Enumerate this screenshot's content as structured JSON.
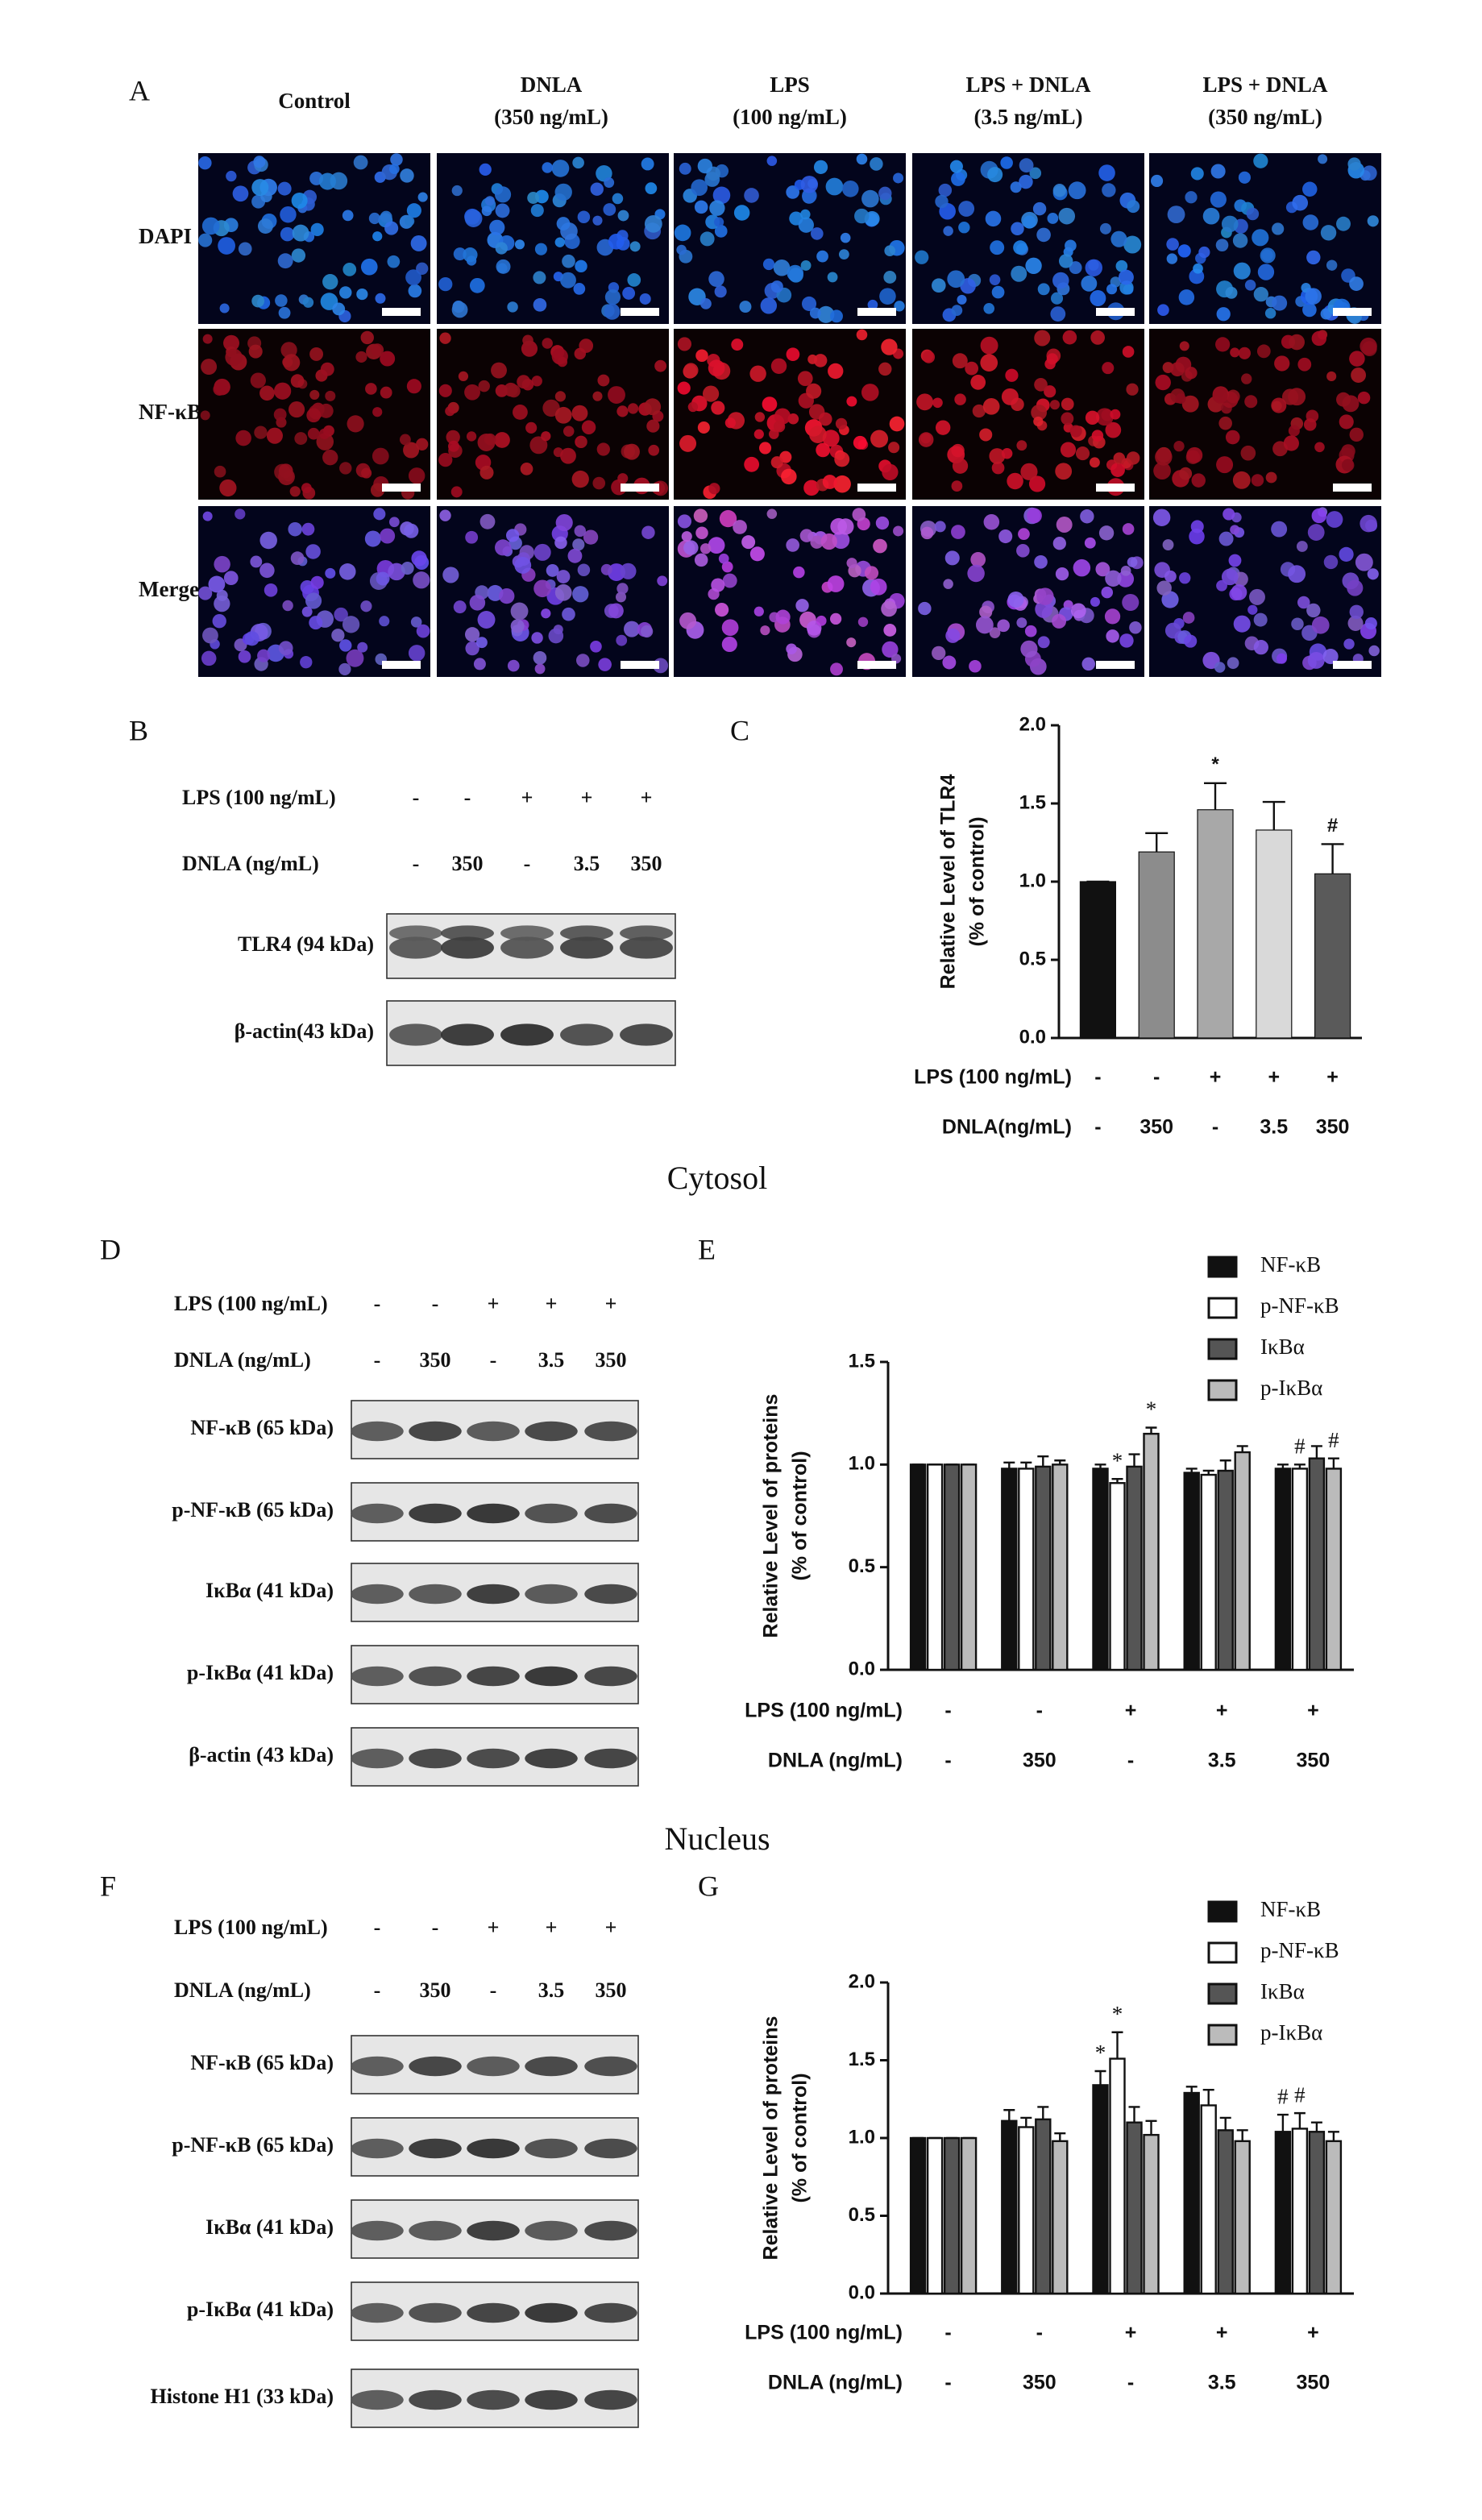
{
  "panel_a": {
    "label": "A",
    "columns": [
      {
        "name": "Control"
      },
      {
        "name": "DNLA",
        "dose": "(350 ng/mL)"
      },
      {
        "name": "LPS",
        "dose": "(100 ng/mL)"
      },
      {
        "name": "LPS + DNLA",
        "dose": "(3.5 ng/mL)"
      },
      {
        "name": "LPS + DNLA",
        "dose": "(350 ng/mL)"
      }
    ],
    "rows": [
      "DAPI",
      "NF-κB",
      "Merge"
    ]
  },
  "panel_b": {
    "label": "B",
    "conditions": [
      {
        "label": "LPS (100 ng/mL)",
        "values": [
          "-",
          "-",
          "+",
          "+",
          "+"
        ]
      },
      {
        "label": "DNLA (ng/mL)",
        "values": [
          "-",
          "350",
          "-",
          "3.5",
          "350"
        ]
      }
    ],
    "blots": [
      "TLR4 (94 kDa)",
      "β-actin(43 kDa)"
    ]
  },
  "panel_d": {
    "label": "D",
    "conditions": [
      {
        "label": "LPS (100 ng/mL)",
        "values": [
          "-",
          "-",
          "+",
          "+",
          "+"
        ]
      },
      {
        "label": "DNLA (ng/mL)",
        "values": [
          "-",
          "350",
          "-",
          "3.5",
          "350"
        ]
      }
    ],
    "blots": [
      "NF-κB (65 kDa)",
      "p-NF-κB (65 kDa)",
      "IκBα (41 kDa)",
      "p-IκBα (41 kDa)",
      "β-actin (43 kDa)"
    ]
  },
  "panel_f": {
    "label": "F",
    "conditions": [
      {
        "label": "LPS (100 ng/mL)",
        "values": [
          "-",
          "-",
          "+",
          "+",
          "+"
        ]
      },
      {
        "label": "DNLA (ng/mL)",
        "values": [
          "-",
          "350",
          "-",
          "3.5",
          "350"
        ]
      }
    ],
    "blots": [
      "NF-κB (65 kDa)",
      "p-NF-κB (65 kDa)",
      "IκBα (41 kDa)",
      "p-IκBα (41 kDa)",
      "Histone H1 (33 kDa)"
    ]
  },
  "section_labels": [
    "Cytosol",
    "Nucleus"
  ],
  "chart_data": [
    {
      "type": "bar",
      "label": "C",
      "y_label": [
        "Relative Level of TLR4",
        "(% of control)"
      ],
      "values": [
        1.0,
        1.19,
        1.46,
        1.33,
        1.05
      ],
      "errors": [
        0,
        0.12,
        0.17,
        0.18,
        0.19
      ],
      "colors": [
        "#111111",
        "#8c8c8c",
        "#a8a8a8",
        "#d9d9d9",
        "#5a5a5a"
      ],
      "ylim": [
        0,
        2
      ],
      "yticks": [
        {
          "value": 0,
          "label": "0.0"
        },
        {
          "value": 0.5,
          "label": "0.5"
        },
        {
          "value": 1,
          "label": "1.0"
        },
        {
          "value": 1.5,
          "label": "1.5"
        },
        {
          "value": 2,
          "label": "2.0"
        }
      ],
      "annotations": [
        {
          "index": 2,
          "text": "*"
        },
        {
          "index": 4,
          "text": "#"
        }
      ],
      "conditions": [
        {
          "label": "LPS (100 ng/mL)",
          "values": [
            "-",
            "-",
            "+",
            "+",
            "+"
          ]
        },
        {
          "label": "DNLA(ng/mL)",
          "values": [
            "-",
            "350",
            "-",
            "3.5",
            "350"
          ]
        }
      ]
    },
    {
      "type": "grouped_bar",
      "label": "E",
      "y_label": [
        "Relative Level of proteins",
        "(% of control)"
      ],
      "series": [
        {
          "name": "NF-κB",
          "color": "#111111",
          "values": [
            1.0,
            0.98,
            0.98,
            0.96,
            0.98
          ],
          "errors": [
            0,
            0.03,
            0.02,
            0.02,
            0.02
          ]
        },
        {
          "name": "p-NF-κB",
          "color": "#ffffff",
          "values": [
            1.0,
            0.98,
            0.91,
            0.95,
            0.98
          ],
          "errors": [
            0,
            0.03,
            0.02,
            0.02,
            0.02
          ]
        },
        {
          "name": "IκBα",
          "color": "#555555",
          "values": [
            1.0,
            0.99,
            0.99,
            0.97,
            1.03
          ],
          "errors": [
            0,
            0.05,
            0.06,
            0.05,
            0.06
          ]
        },
        {
          "name": "p-IκBα",
          "color": "#bbbbbb",
          "values": [
            1.0,
            1.0,
            1.15,
            1.06,
            0.98
          ],
          "errors": [
            0,
            0.02,
            0.03,
            0.03,
            0.05
          ]
        }
      ],
      "ylim": [
        0,
        1.5
      ],
      "yticks": [
        {
          "value": 0,
          "label": "0.0"
        },
        {
          "value": 0.5,
          "label": "0.5"
        },
        {
          "value": 1,
          "label": "1.0"
        },
        {
          "value": 1.5,
          "label": "1.5"
        }
      ],
      "annotations": [
        {
          "series": 1,
          "index": 2,
          "text": "*"
        },
        {
          "series": 3,
          "index": 2,
          "text": "*"
        },
        {
          "series": 1,
          "index": 4,
          "text": "#"
        },
        {
          "series": 3,
          "index": 4,
          "text": "#"
        }
      ],
      "conditions": [
        {
          "label": "LPS (100 ng/mL)",
          "values": [
            "-",
            "-",
            "+",
            "+",
            "+"
          ]
        },
        {
          "label": "DNLA (ng/mL)",
          "values": [
            "-",
            "350",
            "-",
            "3.5",
            "350"
          ]
        }
      ]
    },
    {
      "type": "grouped_bar",
      "label": "G",
      "y_label": [
        "Relative Level of proteins",
        "(% of control)"
      ],
      "series": [
        {
          "name": "NF-κB",
          "color": "#111111",
          "values": [
            1.0,
            1.11,
            1.34,
            1.29,
            1.04
          ],
          "errors": [
            0,
            0.07,
            0.09,
            0.04,
            0.11
          ]
        },
        {
          "name": "p-NF-κB",
          "color": "#ffffff",
          "values": [
            1.0,
            1.07,
            1.51,
            1.21,
            1.06
          ],
          "errors": [
            0,
            0.06,
            0.17,
            0.1,
            0.1
          ]
        },
        {
          "name": "IκBα",
          "color": "#555555",
          "values": [
            1.0,
            1.12,
            1.1,
            1.05,
            1.04
          ],
          "errors": [
            0,
            0.08,
            0.1,
            0.08,
            0.06
          ]
        },
        {
          "name": "p-IκBα",
          "color": "#bbbbbb",
          "values": [
            1.0,
            0.98,
            1.02,
            0.98,
            0.98
          ],
          "errors": [
            0,
            0.05,
            0.09,
            0.07,
            0.06
          ]
        }
      ],
      "ylim": [
        0,
        2
      ],
      "yticks": [
        {
          "value": 0,
          "label": "0.0"
        },
        {
          "value": 0.5,
          "label": "0.5"
        },
        {
          "value": 1,
          "label": "1.0"
        },
        {
          "value": 1.5,
          "label": "1.5"
        },
        {
          "value": 2,
          "label": "2.0"
        }
      ],
      "annotations": [
        {
          "series": 0,
          "index": 2,
          "text": "*"
        },
        {
          "series": 1,
          "index": 2,
          "text": "*"
        },
        {
          "series": 0,
          "index": 4,
          "text": "#"
        },
        {
          "series": 1,
          "index": 4,
          "text": "#"
        }
      ],
      "conditions": [
        {
          "label": "LPS (100 ng/mL)",
          "values": [
            "-",
            "-",
            "+",
            "+",
            "+"
          ]
        },
        {
          "label": "DNLA (ng/mL)",
          "values": [
            "-",
            "350",
            "-",
            "3.5",
            "350"
          ]
        }
      ]
    }
  ]
}
